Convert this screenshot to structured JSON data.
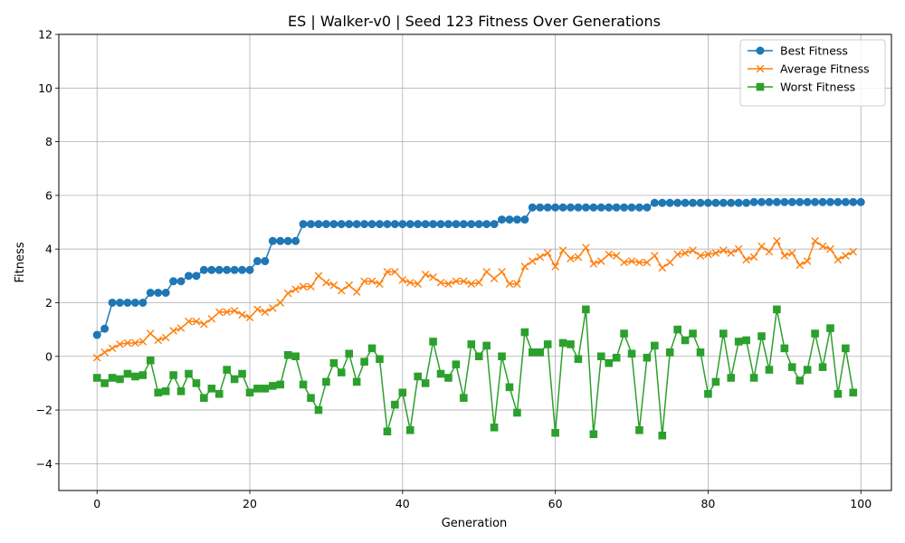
{
  "chart_data": {
    "type": "line",
    "title": "ES | Walker-v0 | Seed 123 Fitness Over Generations",
    "xlabel": "Generation",
    "ylabel": "Fitness",
    "xlim": [
      -5,
      104
    ],
    "ylim": [
      -5,
      12
    ],
    "xticks": [
      0,
      20,
      40,
      60,
      80,
      100
    ],
    "yticks": [
      -4,
      -2,
      0,
      2,
      4,
      6,
      8,
      10,
      12
    ],
    "grid": true,
    "legend_position": "top-right",
    "series": [
      {
        "name": "Best Fitness",
        "color": "#1f77b4",
        "marker": "circle",
        "values": [
          0.8,
          1.03,
          2.0,
          2.0,
          2.0,
          2.0,
          2.0,
          2.37,
          2.37,
          2.37,
          2.8,
          2.8,
          3.0,
          3.0,
          3.22,
          3.22,
          3.22,
          3.22,
          3.22,
          3.22,
          3.22,
          3.55,
          3.55,
          4.3,
          4.3,
          4.3,
          4.3,
          4.93,
          4.93,
          4.93,
          4.93,
          4.93,
          4.93,
          4.93,
          4.93,
          4.93,
          4.93,
          4.93,
          4.93,
          4.93,
          4.93,
          4.93,
          4.93,
          4.93,
          4.93,
          4.93,
          4.93,
          4.93,
          4.93,
          4.93,
          4.93,
          4.93,
          4.93,
          5.1,
          5.1,
          5.1,
          5.1,
          5.55,
          5.55,
          5.55,
          5.55,
          5.55,
          5.55,
          5.55,
          5.55,
          5.55,
          5.55,
          5.55,
          5.55,
          5.55,
          5.55,
          5.55,
          5.55,
          5.72,
          5.72,
          5.72,
          5.72,
          5.72,
          5.72,
          5.72,
          5.72,
          5.72,
          5.72,
          5.72,
          5.72,
          5.72,
          5.75,
          5.75,
          5.75,
          5.75,
          5.75,
          5.75,
          5.75,
          5.75,
          5.75,
          5.75,
          5.75,
          5.75,
          5.75,
          5.75,
          5.75
        ]
      },
      {
        "name": "Average Fitness",
        "color": "#ff7f0e",
        "marker": "x",
        "values": [
          -0.05,
          0.15,
          0.3,
          0.45,
          0.5,
          0.5,
          0.55,
          0.85,
          0.6,
          0.7,
          0.95,
          1.05,
          1.3,
          1.3,
          1.2,
          1.4,
          1.65,
          1.65,
          1.7,
          1.55,
          1.45,
          1.75,
          1.65,
          1.8,
          2.0,
          2.35,
          2.5,
          2.6,
          2.6,
          3.0,
          2.75,
          2.65,
          2.45,
          2.65,
          2.4,
          2.8,
          2.8,
          2.7,
          3.15,
          3.15,
          2.85,
          2.75,
          2.7,
          3.05,
          2.95,
          2.75,
          2.7,
          2.8,
          2.8,
          2.7,
          2.75,
          3.15,
          2.9,
          3.15,
          2.7,
          2.7,
          3.35,
          3.55,
          3.7,
          3.85,
          3.35,
          3.95,
          3.65,
          3.7,
          4.05,
          3.45,
          3.55,
          3.8,
          3.75,
          3.5,
          3.55,
          3.5,
          3.5,
          3.75,
          3.3,
          3.5,
          3.8,
          3.85,
          3.95,
          3.75,
          3.8,
          3.85,
          3.95,
          3.85,
          4.0,
          3.6,
          3.7,
          4.1,
          3.9,
          4.3,
          3.75,
          3.85,
          3.4,
          3.55,
          4.3,
          4.1,
          4.0,
          3.6,
          3.75,
          3.9
        ]
      },
      {
        "name": "Worst Fitness",
        "color": "#2ca02c",
        "marker": "square",
        "values": [
          -0.8,
          -1.0,
          -0.8,
          -0.85,
          -0.65,
          -0.75,
          -0.7,
          -0.15,
          -1.35,
          -1.3,
          -0.7,
          -1.3,
          -0.65,
          -1.0,
          -1.55,
          -1.2,
          -1.4,
          -0.5,
          -0.85,
          -0.65,
          -1.35,
          -1.2,
          -1.2,
          -1.1,
          -1.05,
          0.05,
          0.0,
          -1.05,
          -1.55,
          -2.0,
          -0.95,
          -0.25,
          -0.6,
          0.1,
          -0.95,
          -0.2,
          0.3,
          -0.1,
          -2.8,
          -1.8,
          -1.35,
          -2.75,
          -0.75,
          -1.0,
          0.55,
          -0.65,
          -0.8,
          -0.3,
          -1.55,
          0.45,
          0.0,
          0.4,
          -2.65,
          0.0,
          -1.15,
          -2.1,
          0.9,
          0.15,
          0.15,
          0.45,
          -2.85,
          0.5,
          0.45,
          -0.1,
          1.75,
          -2.9,
          0.0,
          -0.25,
          -0.05,
          0.85,
          0.1,
          -2.75,
          -0.05,
          0.4,
          -2.95,
          0.15,
          1.0,
          0.6,
          0.85,
          0.15,
          -1.4,
          -0.95,
          0.85,
          -0.8,
          0.55,
          0.6,
          -0.8,
          0.75,
          -0.5,
          1.75,
          0.3,
          -0.4,
          -0.9,
          -0.5,
          0.85,
          -0.4,
          1.05,
          -1.4,
          0.3,
          -1.35
        ]
      }
    ]
  }
}
